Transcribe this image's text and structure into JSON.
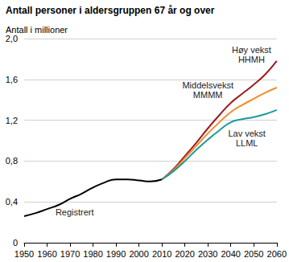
{
  "chart_data": {
    "type": "line",
    "title": "Antall personer i aldersgruppen 67 år og over",
    "subtitle": "Antall i millioner",
    "x": [
      1950,
      1955,
      1960,
      1965,
      1970,
      1975,
      1980,
      1985,
      1990,
      1995,
      2000,
      2005,
      2010,
      2015,
      2020,
      2025,
      2030,
      2035,
      2040,
      2045,
      2050,
      2055,
      2060
    ],
    "series": [
      {
        "name": "Registrert",
        "color": "#000000",
        "values": [
          0.26,
          0.29,
          0.33,
          0.37,
          0.43,
          0.48,
          0.54,
          0.59,
          0.62,
          0.62,
          0.61,
          0.6,
          0.62,
          null,
          null,
          null,
          null,
          null,
          null,
          null,
          null,
          null,
          null
        ]
      },
      {
        "name": "Høy vekst HHMH",
        "color": "#9b1b1f",
        "values": [
          null,
          null,
          null,
          null,
          null,
          null,
          null,
          null,
          null,
          null,
          null,
          null,
          0.62,
          0.72,
          0.85,
          0.98,
          1.12,
          1.25,
          1.37,
          1.46,
          1.55,
          1.65,
          1.78
        ]
      },
      {
        "name": "Middelsvekst MMMM",
        "color": "#f28c28",
        "values": [
          null,
          null,
          null,
          null,
          null,
          null,
          null,
          null,
          null,
          null,
          null,
          null,
          0.62,
          0.71,
          0.83,
          0.95,
          1.07,
          1.18,
          1.28,
          1.35,
          1.41,
          1.47,
          1.52
        ]
      },
      {
        "name": "Lav vekst LLML",
        "color": "#1a9b9b",
        "values": [
          null,
          null,
          null,
          null,
          null,
          null,
          null,
          null,
          null,
          null,
          null,
          null,
          0.62,
          0.7,
          0.8,
          0.91,
          1.01,
          1.1,
          1.18,
          1.21,
          1.23,
          1.26,
          1.3
        ]
      }
    ],
    "xlim": [
      1950,
      2060
    ],
    "xticks": [
      1950,
      1960,
      1970,
      1980,
      1990,
      2000,
      2010,
      2020,
      2030,
      2040,
      2050,
      2060
    ],
    "ylim": [
      0,
      2
    ],
    "yticks": [
      0,
      {
        "value": 0.4,
        "label": "0,4"
      },
      {
        "value": 0.8,
        "label": "0,8"
      },
      {
        "value": 1.2,
        "label": "1,2"
      },
      {
        "value": 1.6,
        "label": "1,6"
      },
      {
        "value": 2,
        "label": "2,0"
      }
    ],
    "grid": true
  }
}
